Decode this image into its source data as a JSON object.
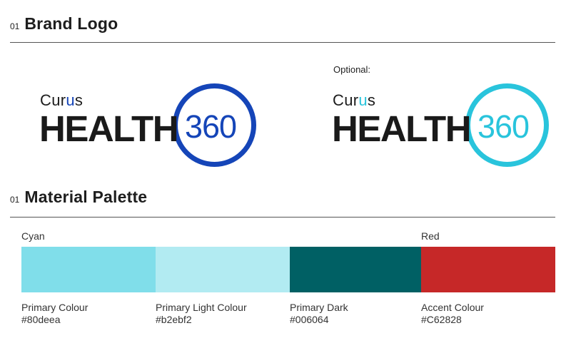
{
  "sections": [
    {
      "number": "01",
      "title": "Brand Logo"
    },
    {
      "number": "01",
      "title": "Material Palette"
    }
  ],
  "logos": [
    {
      "curus": "Curus",
      "health": "HEALTH",
      "number": "360",
      "accent": "#1545b8"
    },
    {
      "curus": "Curus",
      "health": "HEALTH",
      "number": "360",
      "accent": "#29c4dc"
    }
  ],
  "optional_label": "Optional:",
  "palette": {
    "group_labels": [
      "Cyan",
      "Red"
    ],
    "swatches": [
      {
        "name": "Primary Colour",
        "hex": "#80deea",
        "color": "#80deea"
      },
      {
        "name": "Primary Light Colour",
        "hex": "#b2ebf2",
        "color": "#b2ebf2"
      },
      {
        "name": "Primary Dark",
        "hex": "#006064",
        "color": "#006064"
      },
      {
        "name": "Accent Colour",
        "hex": "#C62828",
        "color": "#C62828"
      }
    ]
  }
}
